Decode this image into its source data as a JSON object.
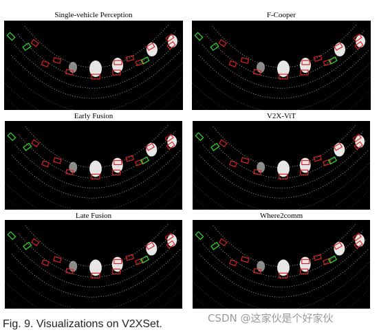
{
  "panels": [
    {
      "title": "Single-vehicle Perception"
    },
    {
      "title": "F-Cooper"
    },
    {
      "title": "Early Fusion"
    },
    {
      "title": "V2X-ViT"
    },
    {
      "title": "Late Fusion"
    },
    {
      "title": "Where2comm"
    }
  ],
  "caption": "Fig. 9. Visualizations on V2XSet.",
  "watermark": "CSDN @这家伙是个好家伙"
}
